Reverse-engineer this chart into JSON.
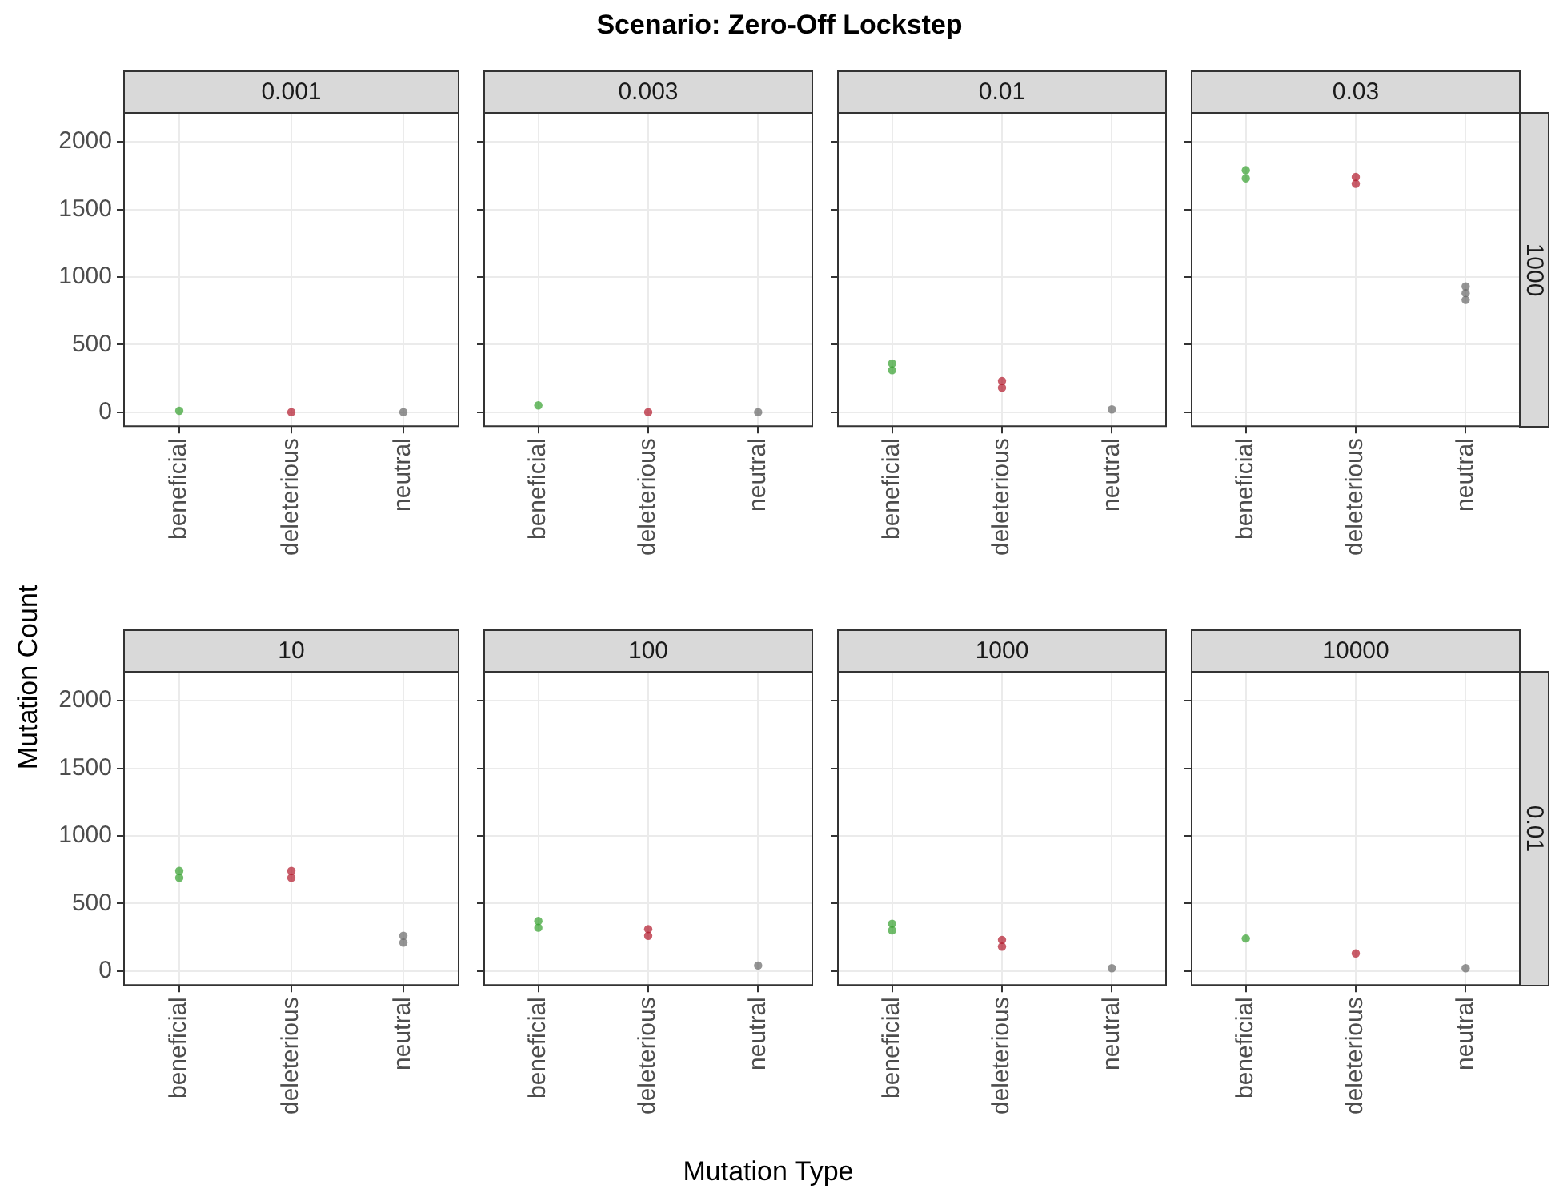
{
  "chart_data": [
    {
      "type": "scatter",
      "title": "0.001",
      "annotations": [
        "Scenario: Zero-Off Lockstep"
      ],
      "ylabel": "Mutation Count",
      "categories": [
        "beneficial",
        "deleterious",
        "neutral"
      ],
      "series": [
        {
          "color": "#33a02c",
          "x": [
            "beneficial"
          ],
          "values": [
            10
          ]
        },
        {
          "color": "#b2182b",
          "x": [
            "deleterious"
          ],
          "values": [
            0
          ]
        },
        {
          "color": "#666666",
          "x": [
            "neutral"
          ],
          "values": [
            0
          ]
        }
      ],
      "ylim": [
        -110,
        2220
      ],
      "yticks": [
        0,
        500,
        1000,
        1500,
        2000
      ],
      "grid": true,
      "marker": "circle"
    },
    {
      "type": "scatter",
      "title": "0.003",
      "categories": [
        "beneficial",
        "deleterious",
        "neutral"
      ],
      "series": [
        {
          "color": "#33a02c",
          "x": [
            "beneficial"
          ],
          "values": [
            50
          ]
        },
        {
          "color": "#b2182b",
          "x": [
            "deleterious"
          ],
          "values": [
            0
          ]
        },
        {
          "color": "#666666",
          "x": [
            "neutral"
          ],
          "values": [
            0
          ]
        }
      ],
      "ylim": [
        -110,
        2220
      ],
      "yticks": [
        0,
        500,
        1000,
        1500,
        2000
      ],
      "grid": true,
      "marker": "circle",
      "tick_labels": "x"
    },
    {
      "type": "scatter",
      "title": "0.01",
      "categories": [
        "beneficial",
        "deleterious",
        "neutral"
      ],
      "series": [
        {
          "color": "#33a02c",
          "x": [
            "beneficial",
            "beneficial"
          ],
          "values": [
            310,
            360
          ]
        },
        {
          "color": "#b2182b",
          "x": [
            "deleterious",
            "deleterious"
          ],
          "values": [
            180,
            230
          ]
        },
        {
          "color": "#666666",
          "x": [
            "neutral"
          ],
          "values": [
            20
          ]
        }
      ],
      "ylim": [
        -110,
        2220
      ],
      "yticks": [
        0,
        500,
        1000,
        1500,
        2000
      ],
      "grid": true,
      "marker": "circle",
      "tick_labels": "x"
    },
    {
      "type": "scatter",
      "title": "0.03",
      "y2label": "1000",
      "categories": [
        "beneficial",
        "deleterious",
        "neutral"
      ],
      "series": [
        {
          "color": "#33a02c",
          "x": [
            "beneficial",
            "beneficial"
          ],
          "values": [
            1730,
            1790
          ]
        },
        {
          "color": "#b2182b",
          "x": [
            "deleterious",
            "deleterious"
          ],
          "values": [
            1690,
            1740
          ]
        },
        {
          "color": "#666666",
          "x": [
            "neutral",
            "neutral",
            "neutral"
          ],
          "values": [
            830,
            880,
            930
          ]
        }
      ],
      "ylim": [
        -110,
        2220
      ],
      "yticks": [
        0,
        500,
        1000,
        1500,
        2000
      ],
      "grid": true,
      "marker": "circle",
      "tick_labels": "x"
    },
    {
      "type": "scatter",
      "title": "10",
      "categories": [
        "beneficial",
        "deleterious",
        "neutral"
      ],
      "series": [
        {
          "color": "#33a02c",
          "x": [
            "beneficial",
            "beneficial"
          ],
          "values": [
            690,
            740
          ]
        },
        {
          "color": "#b2182b",
          "x": [
            "deleterious",
            "deleterious"
          ],
          "values": [
            690,
            740
          ]
        },
        {
          "color": "#666666",
          "x": [
            "neutral",
            "neutral"
          ],
          "values": [
            210,
            260
          ]
        }
      ],
      "ylim": [
        -110,
        2220
      ],
      "yticks": [
        0,
        500,
        1000,
        1500,
        2000
      ],
      "grid": true,
      "marker": "circle"
    },
    {
      "type": "scatter",
      "title": "100",
      "xlabel": "Mutation Type",
      "categories": [
        "beneficial",
        "deleterious",
        "neutral"
      ],
      "series": [
        {
          "color": "#33a02c",
          "x": [
            "beneficial",
            "beneficial"
          ],
          "values": [
            320,
            370
          ]
        },
        {
          "color": "#b2182b",
          "x": [
            "deleterious",
            "deleterious"
          ],
          "values": [
            260,
            310
          ]
        },
        {
          "color": "#666666",
          "x": [
            "neutral"
          ],
          "values": [
            40
          ]
        }
      ],
      "ylim": [
        -110,
        2220
      ],
      "yticks": [
        0,
        500,
        1000,
        1500,
        2000
      ],
      "grid": true,
      "marker": "circle",
      "tick_labels": "x"
    },
    {
      "type": "scatter",
      "title": "1000",
      "categories": [
        "beneficial",
        "deleterious",
        "neutral"
      ],
      "series": [
        {
          "color": "#33a02c",
          "x": [
            "beneficial",
            "beneficial"
          ],
          "values": [
            300,
            350
          ]
        },
        {
          "color": "#b2182b",
          "x": [
            "deleterious",
            "deleterious"
          ],
          "values": [
            180,
            230
          ]
        },
        {
          "color": "#666666",
          "x": [
            "neutral"
          ],
          "values": [
            20
          ]
        }
      ],
      "ylim": [
        -110,
        2220
      ],
      "yticks": [
        0,
        500,
        1000,
        1500,
        2000
      ],
      "grid": true,
      "marker": "circle",
      "tick_labels": "x"
    },
    {
      "type": "scatter",
      "title": "10000",
      "y2label": "0.01",
      "categories": [
        "beneficial",
        "deleterious",
        "neutral"
      ],
      "series": [
        {
          "color": "#33a02c",
          "x": [
            "beneficial"
          ],
          "values": [
            240
          ]
        },
        {
          "color": "#b2182b",
          "x": [
            "deleterious"
          ],
          "values": [
            130
          ]
        },
        {
          "color": "#666666",
          "x": [
            "neutral"
          ],
          "values": [
            20
          ]
        }
      ],
      "ylim": [
        -110,
        2220
      ],
      "yticks": [
        0,
        500,
        1000,
        1500,
        2000
      ],
      "grid": true,
      "marker": "circle",
      "tick_labels": "x"
    }
  ]
}
